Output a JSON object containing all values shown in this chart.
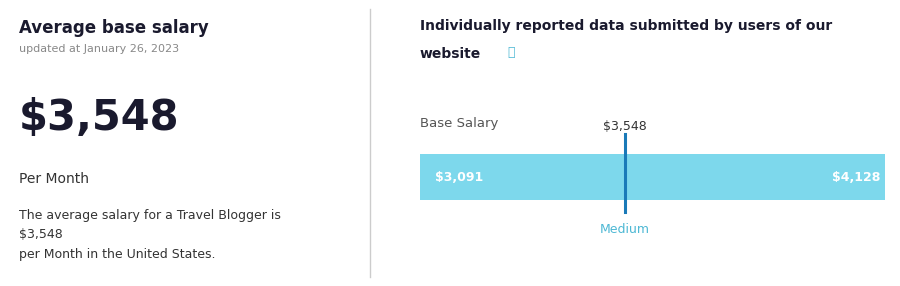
{
  "bg_color": "#ffffff",
  "divider_color": "#cccccc",
  "left_panel": {
    "title": "Average base salary",
    "title_color": "#1a1a2e",
    "updated_text": "updated at January 26, 2023",
    "updated_color": "#888888",
    "salary_text": "$3,548",
    "salary_color": "#1a1a2e",
    "per_month_text": "Per Month",
    "per_month_color": "#333333",
    "description": "The average salary for a Travel Blogger is\n$3,548\nper Month in the United States.",
    "description_color": "#333333"
  },
  "right_panel": {
    "header_line1": "Individually reported data submitted by users of our",
    "header_line2": "website",
    "header_color": "#1a1a2e",
    "info_icon_color": "#4db8d4",
    "bar_label": "Base Salary",
    "bar_label_color": "#555555",
    "median_value": "$3,548",
    "median_color": "#333333",
    "low_value": "$3,091",
    "low_color": "#ffffff",
    "high_value": "$4,128",
    "high_color": "#ffffff",
    "medium_text": "Medium",
    "medium_color": "#4db8d4",
    "bar_color": "#7dd8ec",
    "bar_low": 3091,
    "bar_high": 4128,
    "bar_median": 3548,
    "median_line_color": "#1a7ab8",
    "bar_height": 0.16
  }
}
